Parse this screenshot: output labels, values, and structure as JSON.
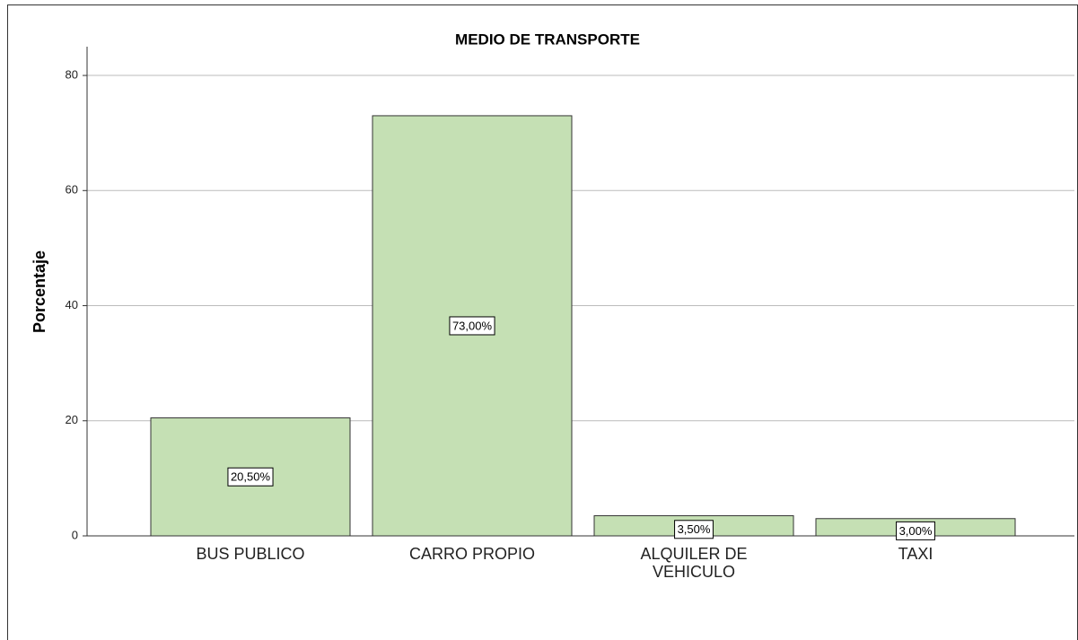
{
  "chart_data": {
    "type": "bar",
    "title": "MEDIO DE TRANSPORTE",
    "ylabel": "Porcentaje",
    "categories": [
      "BUS PUBLICO",
      "CARRO PROPIO",
      "ALQUILER DE VEHICULO",
      "TAXI"
    ],
    "values": [
      20.5,
      73,
      3.5,
      3.0
    ],
    "value_labels": [
      "20,50%",
      "73,00%",
      "3,50%",
      "3,00%"
    ],
    "color": "#c5e0b4",
    "ylim": [
      0,
      85
    ],
    "yticks": [
      0,
      20,
      40,
      60,
      80
    ],
    "grid": true
  }
}
